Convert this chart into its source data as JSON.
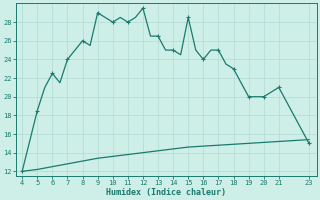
{
  "xlabel": "Humidex (Indice chaleur)",
  "x_ticks": [
    4,
    5,
    6,
    7,
    8,
    9,
    10,
    11,
    12,
    13,
    14,
    15,
    16,
    17,
    18,
    19,
    20,
    21,
    23
  ],
  "xlim": [
    3.6,
    23.5
  ],
  "ylim": [
    11.5,
    30.0
  ],
  "y_ticks": [
    12,
    14,
    16,
    18,
    20,
    22,
    24,
    26,
    28
  ],
  "line_color": "#1a7a6e",
  "bg_color": "#ceeee8",
  "grid_color": "#b8ddd7",
  "main_x": [
    4,
    5,
    5.5,
    6,
    6.5,
    7,
    7.5,
    8,
    8.5,
    9,
    9.5,
    10,
    10.5,
    11,
    11.5,
    12,
    12.5,
    13,
    13.5,
    14,
    14.5,
    15,
    15.5,
    16,
    16.5,
    17,
    17.5,
    18,
    19,
    20,
    21,
    23
  ],
  "main_y": [
    12,
    18.5,
    21.0,
    22.5,
    21.5,
    24.0,
    25.0,
    26.0,
    25.5,
    29.0,
    28.5,
    28.0,
    28.5,
    28.0,
    28.5,
    29.5,
    26.5,
    26.5,
    25.0,
    25.0,
    24.5,
    28.5,
    25.0,
    24.0,
    25.0,
    25.0,
    23.5,
    23.0,
    20.0,
    20.0,
    21.0,
    15.0
  ],
  "marker_x": [
    4,
    5,
    6,
    7,
    8,
    9,
    10,
    11,
    12,
    13,
    14,
    15,
    16,
    17,
    18,
    19,
    20,
    21,
    23
  ],
  "marker_y": [
    12,
    18.5,
    22.5,
    24.0,
    26.0,
    29.0,
    28.0,
    28.0,
    29.5,
    26.5,
    25.0,
    28.5,
    24.0,
    25.0,
    23.0,
    20.0,
    20.0,
    21.0,
    15.0
  ],
  "ref_x": [
    4,
    5,
    6,
    7,
    8,
    9,
    10,
    11,
    12,
    13,
    14,
    15,
    16,
    17,
    18,
    19,
    20,
    21,
    23
  ],
  "ref_y": [
    12.0,
    12.2,
    12.5,
    12.8,
    13.1,
    13.4,
    13.6,
    13.8,
    14.0,
    14.2,
    14.4,
    14.6,
    14.7,
    14.8,
    14.9,
    15.0,
    15.1,
    15.2,
    15.4
  ]
}
